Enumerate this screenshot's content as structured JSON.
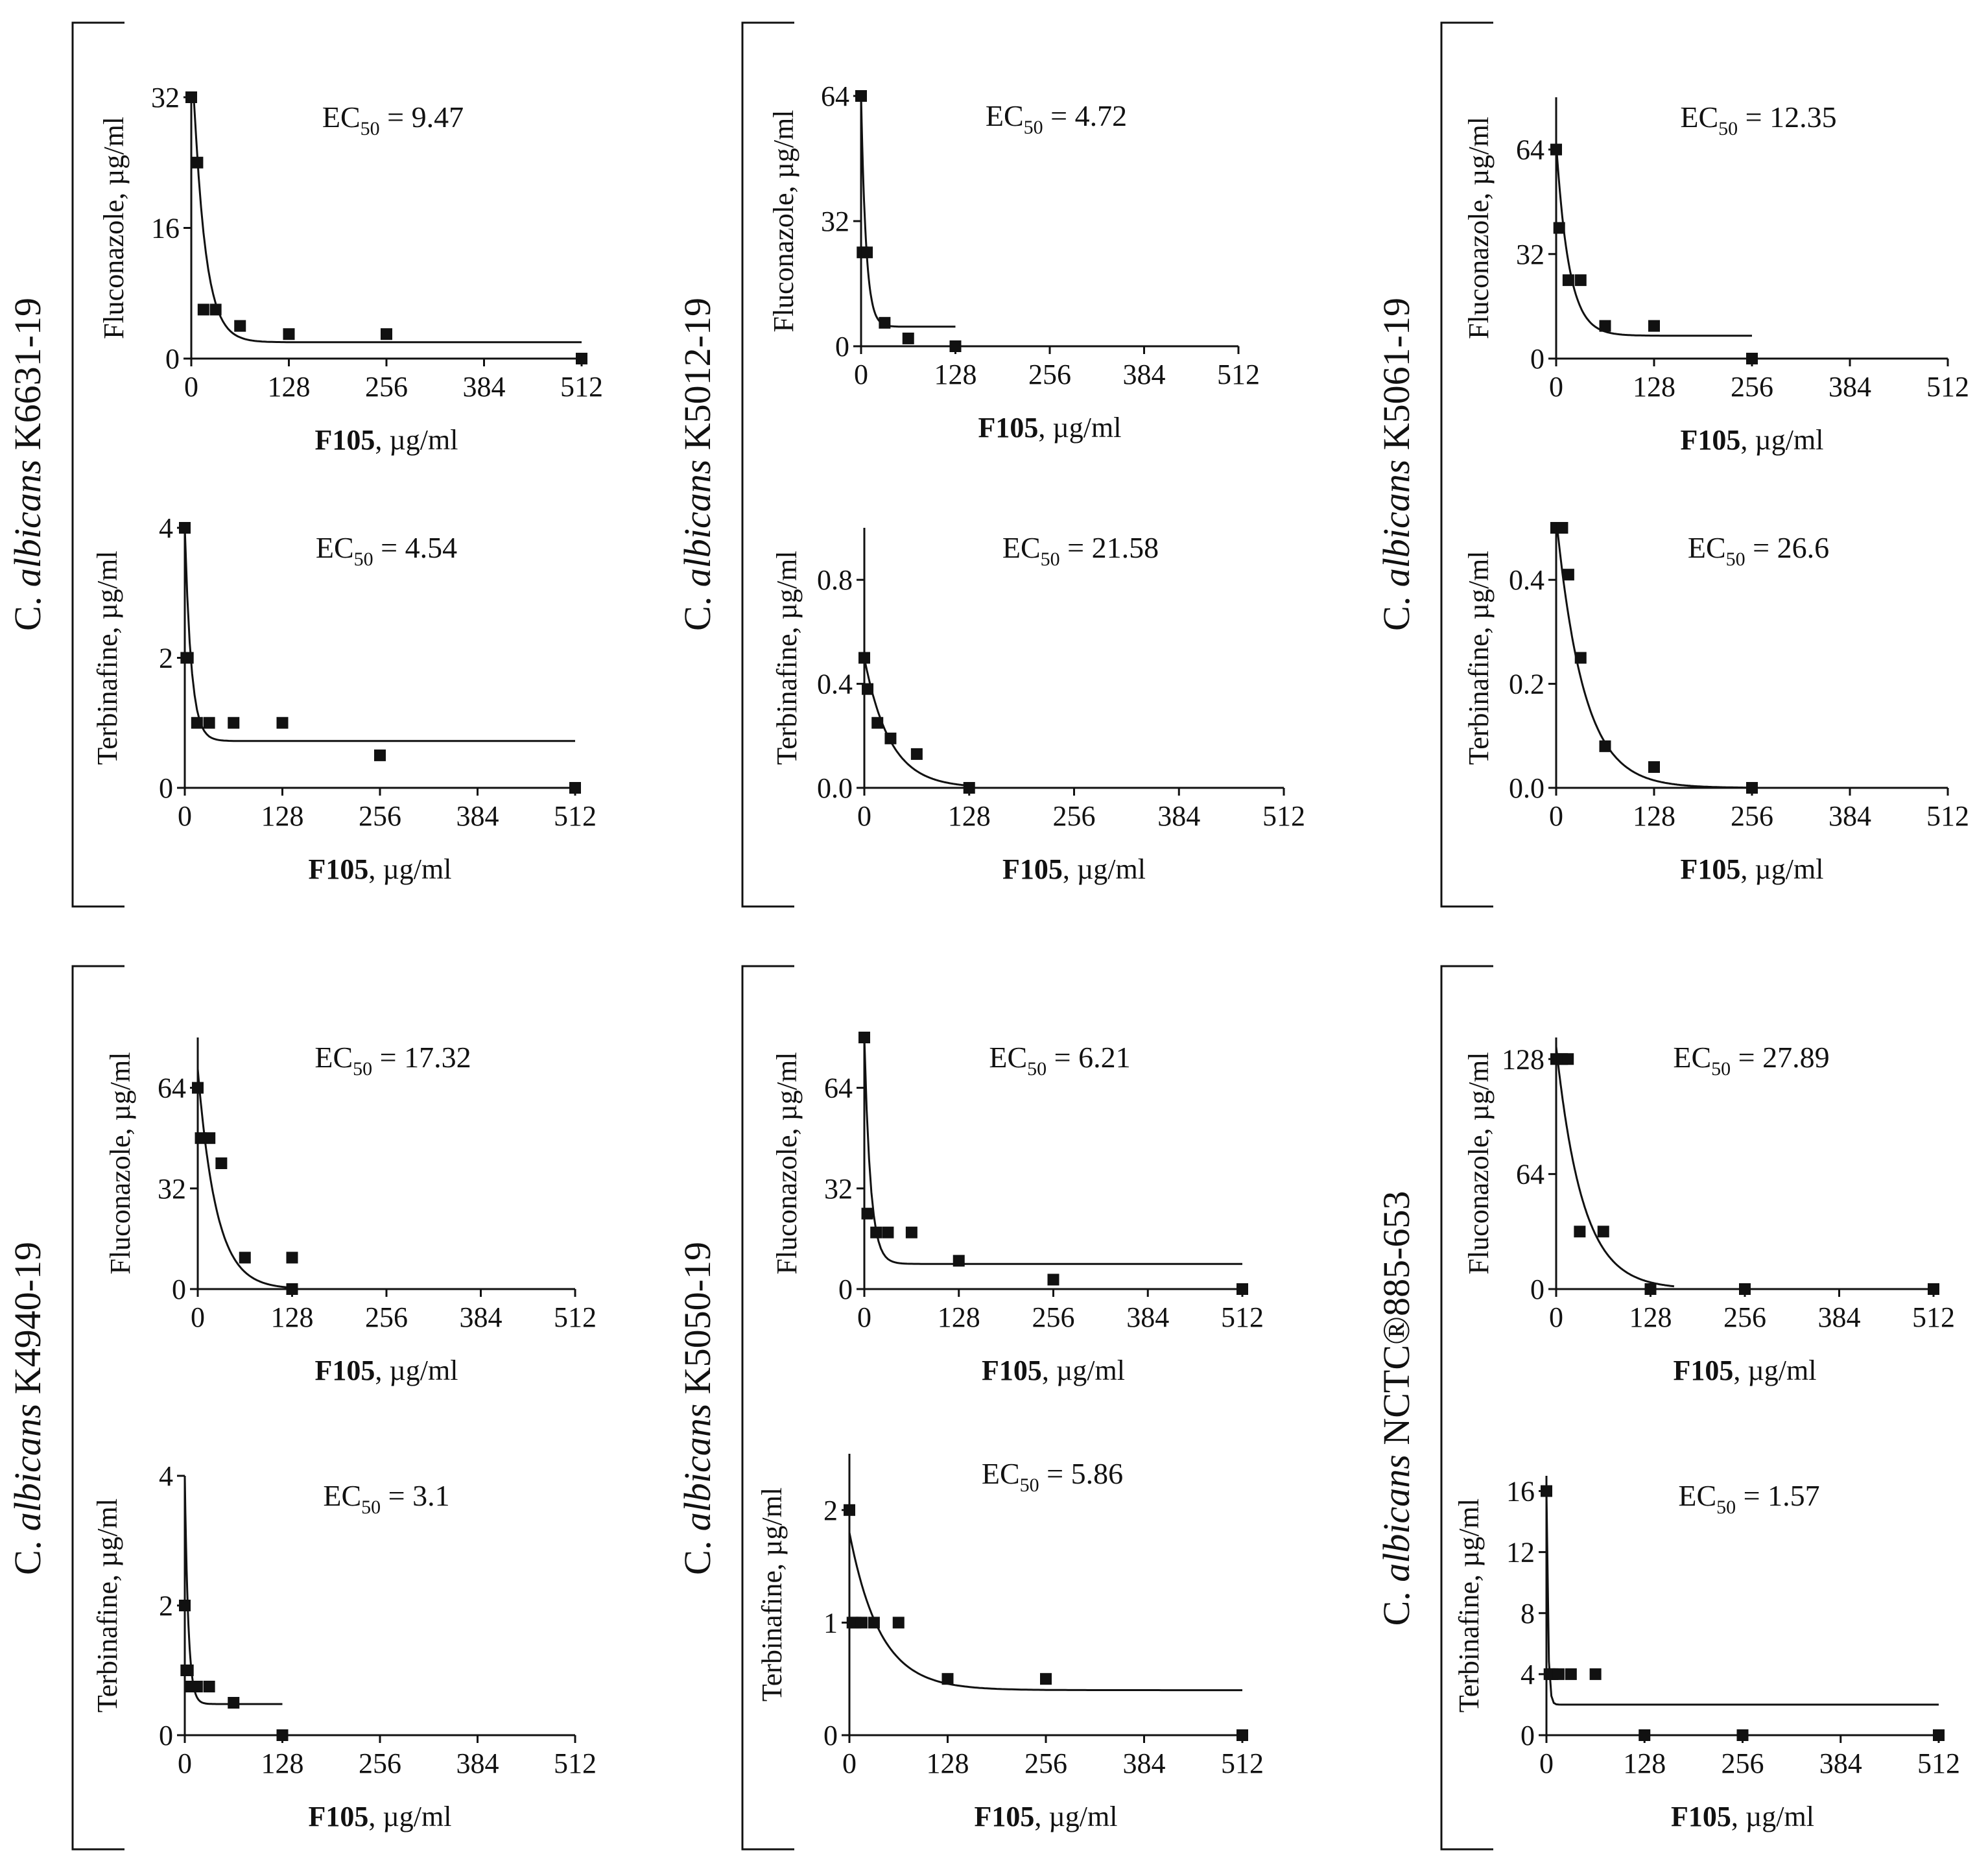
{
  "figure": {
    "x_label_prefix": "F105",
    "x_label_suffix": ", µg/ml",
    "ec_prefix": "EC",
    "ec_sub": "50",
    "ec_eq": " = ",
    "strain_prefix": "C. ",
    "strain_italic": "albicans"
  },
  "chart_data": [
    {
      "strain": "K6631-19",
      "panels": [
        {
          "type": "scatter",
          "ylabel": "Fluconazole, µg/ml",
          "xlabel": "F105, µg/ml",
          "ec50_value": "9.47",
          "xlim": [
            0,
            512
          ],
          "ylim": [
            0,
            32
          ],
          "xticks": [
            0,
            128,
            256,
            384,
            512
          ],
          "yticks": [
            0,
            16,
            32
          ],
          "points": [
            [
              0,
              32
            ],
            [
              8,
              24
            ],
            [
              16,
              6
            ],
            [
              32,
              6
            ],
            [
              64,
              4
            ],
            [
              128,
              3
            ],
            [
              256,
              3
            ],
            [
              512,
              0
            ]
          ],
          "fit": {
            "top": 40,
            "plateau": 2,
            "k": 0.065,
            "xmax": 512
          }
        },
        {
          "type": "scatter",
          "ylabel": "Terbinafine, µg/ml",
          "xlabel": "F105, µg/ml",
          "ec50_value": "4.54",
          "xlim": [
            0,
            512
          ],
          "ylim": [
            0,
            4
          ],
          "xticks": [
            0,
            128,
            256,
            384,
            512
          ],
          "yticks": [
            0,
            2,
            4
          ],
          "points": [
            [
              0,
              4
            ],
            [
              2,
              2
            ],
            [
              4,
              2
            ],
            [
              16,
              1
            ],
            [
              32,
              1
            ],
            [
              64,
              1
            ],
            [
              128,
              1
            ],
            [
              256,
              0.5
            ],
            [
              512,
              0
            ]
          ],
          "fit": {
            "top": 4,
            "plateau": 0.72,
            "k": 0.12,
            "xmax": 512
          }
        }
      ]
    },
    {
      "strain": "K5012-19",
      "panels": [
        {
          "type": "scatter",
          "ylabel": "Fluconazole, µg/ml",
          "xlabel": "F105, µg/ml",
          "ec50_value": "4.72",
          "xlim": [
            0,
            512
          ],
          "ylim": [
            0,
            64
          ],
          "xticks": [
            0,
            128,
            256,
            384,
            512
          ],
          "yticks": [
            0,
            32,
            64
          ],
          "points": [
            [
              0,
              64
            ],
            [
              2,
              24
            ],
            [
              8,
              24
            ],
            [
              32,
              6
            ],
            [
              64,
              2
            ],
            [
              128,
              0
            ]
          ],
          "fit": {
            "top": 64,
            "plateau": 5,
            "k": 0.15,
            "xmax": 128
          }
        },
        {
          "type": "scatter",
          "ylabel": "Terbinafine, µg/ml",
          "xlabel": "F105, µg/ml",
          "ec50_value": "21.58",
          "xlim": [
            0,
            512
          ],
          "ylim": [
            0,
            1.0
          ],
          "xticks": [
            0,
            128,
            256,
            384,
            512
          ],
          "yticks": [
            0.0,
            0.4,
            0.8
          ],
          "ytick_labels": [
            "0.0",
            "0.4",
            "0.8"
          ],
          "points": [
            [
              0,
              0.5
            ],
            [
              4,
              0.38
            ],
            [
              16,
              0.25
            ],
            [
              32,
              0.19
            ],
            [
              64,
              0.13
            ],
            [
              128,
              0
            ]
          ],
          "fit": {
            "top": 0.5,
            "plateau": 0,
            "k": 0.032,
            "xmax": 128
          }
        }
      ]
    },
    {
      "strain": "K5061-19",
      "panels": [
        {
          "type": "scatter",
          "ylabel": "Fluconazole, µg/ml",
          "xlabel": "F105, µg/ml",
          "ec50_value": "12.35",
          "xlim": [
            0,
            512
          ],
          "ylim": [
            0,
            80
          ],
          "xticks": [
            0,
            128,
            256,
            384,
            512
          ],
          "yticks": [
            0,
            32,
            64
          ],
          "points": [
            [
              0,
              64
            ],
            [
              4,
              40
            ],
            [
              16,
              24
            ],
            [
              32,
              24
            ],
            [
              64,
              10
            ],
            [
              128,
              10
            ],
            [
              256,
              0
            ]
          ],
          "fit": {
            "top": 66,
            "plateau": 7,
            "k": 0.06,
            "xmax": 256
          }
        },
        {
          "type": "scatter",
          "ylabel": "Terbinafine, µg/ml",
          "xlabel": "F105, µg/ml",
          "ec50_value": "26.6",
          "xlim": [
            0,
            512
          ],
          "ylim": [
            0,
            0.5
          ],
          "xticks": [
            0,
            128,
            256,
            384,
            512
          ],
          "yticks": [
            0.0,
            0.2,
            0.4
          ],
          "ytick_labels": [
            "0.0",
            "0.2",
            "0.4"
          ],
          "points": [
            [
              0,
              0.5
            ],
            [
              8,
              0.5
            ],
            [
              16,
              0.41
            ],
            [
              32,
              0.25
            ],
            [
              64,
              0.08
            ],
            [
              128,
              0.04
            ],
            [
              256,
              0
            ]
          ],
          "fit": {
            "top": 0.52,
            "plateau": 0,
            "k": 0.028,
            "xmax": 256
          }
        }
      ]
    },
    {
      "strain": "K4940-19",
      "panels": [
        {
          "type": "scatter",
          "ylabel": "Fluconazole, µg/ml",
          "xlabel": "F105, µg/ml",
          "ec50_value": "17.32",
          "xlim": [
            0,
            512
          ],
          "ylim": [
            0,
            80
          ],
          "xticks": [
            0,
            128,
            256,
            384,
            512
          ],
          "yticks": [
            0,
            32,
            64
          ],
          "points": [
            [
              0,
              64
            ],
            [
              4,
              48
            ],
            [
              16,
              48
            ],
            [
              32,
              40
            ],
            [
              64,
              10
            ],
            [
              128,
              10
            ],
            [
              128,
              0
            ]
          ],
          "fit": {
            "top": 70,
            "plateau": 0,
            "k": 0.04,
            "xmax": 128
          }
        },
        {
          "type": "scatter",
          "ylabel": "Terbinafine, µg/ml",
          "xlabel": "F105, µg/ml",
          "ec50_value": "3.1",
          "xlim": [
            0,
            512
          ],
          "ylim": [
            0,
            4
          ],
          "xticks": [
            0,
            128,
            256,
            384,
            512
          ],
          "yticks": [
            0,
            2,
            4
          ],
          "points": [
            [
              0,
              2
            ],
            [
              2,
              1
            ],
            [
              4,
              1
            ],
            [
              8,
              0.75
            ],
            [
              16,
              0.75
            ],
            [
              32,
              0.75
            ],
            [
              64,
              0.5
            ],
            [
              128,
              0
            ]
          ],
          "fit": {
            "top": 4,
            "plateau": 0.48,
            "k": 0.22,
            "xmax": 128
          }
        }
      ]
    },
    {
      "strain": "K5050-19",
      "panels": [
        {
          "type": "scatter",
          "ylabel": "Fluconazole, µg/ml",
          "xlabel": "F105, µg/ml",
          "ec50_value": "6.21",
          "xlim": [
            0,
            512
          ],
          "ylim": [
            0,
            80
          ],
          "xticks": [
            0,
            128,
            256,
            384,
            512
          ],
          "yticks": [
            0,
            32,
            64
          ],
          "points": [
            [
              0,
              80
            ],
            [
              4,
              24
            ],
            [
              16,
              18
            ],
            [
              32,
              18
            ],
            [
              64,
              18
            ],
            [
              128,
              9
            ],
            [
              256,
              3
            ],
            [
              512,
              0
            ]
          ],
          "fit": {
            "top": 80,
            "plateau": 8,
            "k": 0.12,
            "xmax": 512
          }
        },
        {
          "type": "scatter",
          "ylabel": "Terbinafine, µg/ml",
          "xlabel": "F105, µg/ml",
          "ec50_value": "5.86",
          "xlim": [
            0,
            512
          ],
          "ylim": [
            0,
            2.5
          ],
          "xticks": [
            0,
            128,
            256,
            384,
            512
          ],
          "yticks": [
            0,
            1,
            2
          ],
          "points": [
            [
              0,
              2
            ],
            [
              4,
              1
            ],
            [
              8,
              1
            ],
            [
              16,
              1
            ],
            [
              32,
              1
            ],
            [
              64,
              1
            ],
            [
              128,
              0.5
            ],
            [
              256,
              0.5
            ],
            [
              512,
              0
            ]
          ],
          "fit": {
            "top": 1.8,
            "plateau": 0.4,
            "k": 0.025,
            "xmax": 512
          }
        }
      ]
    },
    {
      "strain": "NCTC®885-653",
      "panels": [
        {
          "type": "scatter",
          "ylabel": "Fluconazole, µg/ml",
          "xlabel": "F105, µg/ml",
          "ec50_value": "27.89",
          "xlim": [
            0,
            512
          ],
          "ylim": [
            0,
            140
          ],
          "xticks": [
            0,
            128,
            256,
            384,
            512
          ],
          "yticks": [
            0,
            64,
            128
          ],
          "points": [
            [
              0,
              128
            ],
            [
              8,
              128
            ],
            [
              16,
              128
            ],
            [
              32,
              32
            ],
            [
              64,
              32
            ],
            [
              128,
              0
            ],
            [
              256,
              0
            ],
            [
              512,
              0
            ]
          ],
          "fit": {
            "top": 135,
            "plateau": 0,
            "k": 0.028,
            "xmax": 160
          }
        },
        {
          "type": "scatter",
          "ylabel": "Terbinafine, µg/ml",
          "xlabel": "F105, µg/ml",
          "ec50_value": "1.57",
          "xlim": [
            0,
            512
          ],
          "ylim": [
            0,
            17
          ],
          "xticks": [
            0,
            128,
            256,
            384,
            512
          ],
          "yticks": [
            0,
            4,
            8,
            12,
            16
          ],
          "points": [
            [
              0,
              16
            ],
            [
              4,
              4
            ],
            [
              8,
              4
            ],
            [
              16,
              4
            ],
            [
              32,
              4
            ],
            [
              64,
              4
            ],
            [
              128,
              0
            ],
            [
              256,
              0
            ],
            [
              512,
              0
            ]
          ],
          "fit": {
            "top": 16,
            "plateau": 2,
            "k": 0.5,
            "xmax": 512
          }
        }
      ]
    }
  ]
}
